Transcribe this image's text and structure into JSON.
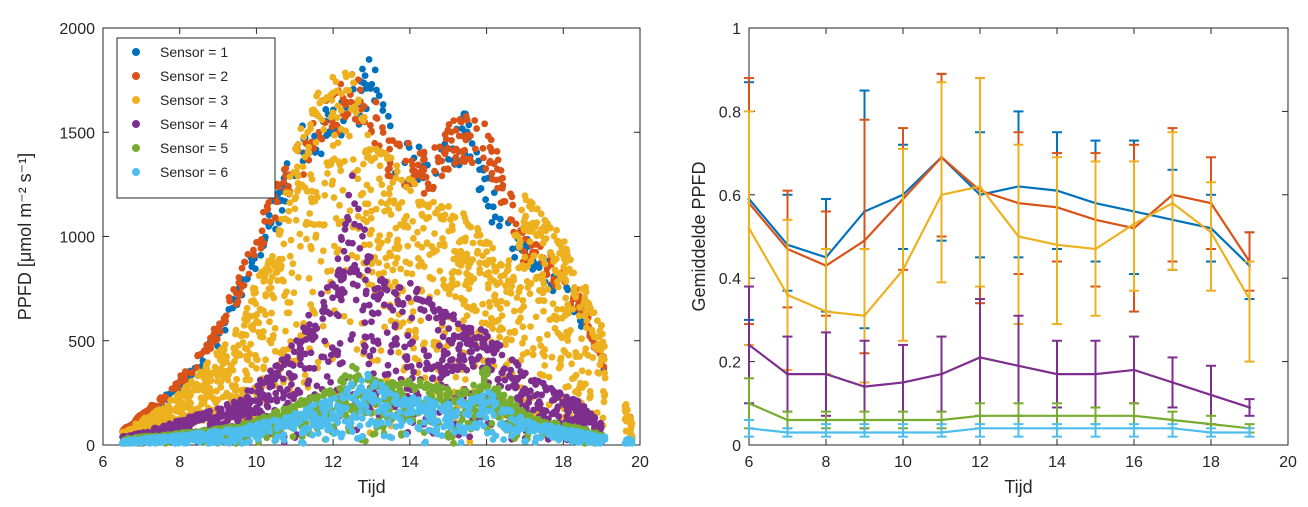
{
  "colors": {
    "s1": "#0072BD",
    "s2": "#D95319",
    "s3": "#EDB120",
    "s4": "#7E2F8E",
    "s5": "#77AC30",
    "s6": "#4DBEEE",
    "axis": "#262626"
  },
  "chart_data": [
    {
      "type": "scatter",
      "xlabel": "Tijd",
      "ylabel": "PPFD [μmol m⁻² s⁻¹]",
      "xlim": [
        6,
        20
      ],
      "ylim": [
        0,
        2000
      ],
      "xticks": [
        6,
        8,
        10,
        12,
        14,
        16,
        18,
        20
      ],
      "yticks": [
        0,
        500,
        1000,
        1500,
        2000
      ],
      "xtick_labels": [
        "6",
        "8",
        "10",
        "12",
        "14",
        "16",
        "18",
        "20"
      ],
      "ytick_labels": [
        "0",
        "500",
        "1000",
        "1500",
        "2000"
      ],
      "legend_position": "top-left",
      "legend": [
        "Sensor = 1",
        "Sensor = 2",
        "Sensor = 3",
        "Sensor = 4",
        "Sensor = 5",
        "Sensor = 6"
      ],
      "series": [
        {
          "name": "Sensor = 1",
          "color": "#0072BD",
          "x": [
            6.5,
            7,
            7.5,
            8,
            8.5,
            9,
            9.5,
            10,
            10.5,
            11,
            11.5,
            12,
            12.5,
            13,
            13.5,
            14,
            14.5,
            15,
            15.5,
            16,
            16.5,
            17,
            17.5,
            18,
            18.5,
            19,
            19.8
          ],
          "y": [
            70,
            140,
            220,
            300,
            420,
            560,
            760,
            1000,
            1200,
            1500,
            1600,
            1640,
            1750,
            1890,
            1550,
            1450,
            1420,
            1450,
            1640,
            1300,
            1100,
            1000,
            900,
            800,
            650,
            420,
            120
          ]
        },
        {
          "name": "Sensor = 2",
          "color": "#D95319",
          "x": [
            6.5,
            7,
            7.5,
            8,
            8.5,
            9,
            9.5,
            10,
            10.5,
            11,
            11.5,
            12,
            12.5,
            13,
            13.5,
            14,
            14.5,
            15,
            15.5,
            16,
            16.5,
            17,
            17.5,
            18,
            18.5,
            19,
            19.8
          ],
          "y": [
            75,
            150,
            230,
            330,
            450,
            600,
            800,
            1050,
            1250,
            1450,
            1600,
            1700,
            1850,
            1700,
            1480,
            1450,
            1400,
            1550,
            1600,
            1550,
            1300,
            1000,
            950,
            850,
            700,
            450,
            110
          ]
        },
        {
          "name": "Sensor = 3",
          "color": "#EDB120",
          "x": [
            6.5,
            7,
            7.5,
            8,
            8.5,
            9,
            9.5,
            10,
            10.5,
            11,
            11.5,
            12,
            12.5,
            13,
            13.5,
            14,
            14.5,
            15,
            15.5,
            16,
            16.5,
            17,
            17.5,
            18,
            18.5,
            19,
            19.8
          ],
          "y": [
            60,
            120,
            180,
            250,
            350,
            450,
            560,
            800,
            950,
            1450,
            1700,
            1790,
            1820,
            1450,
            1380,
            1300,
            1200,
            1150,
            1100,
            1000,
            850,
            1200,
            1100,
            1000,
            800,
            600,
            100
          ]
        },
        {
          "name": "Sensor = 4",
          "color": "#7E2F8E",
          "x": [
            6.5,
            7,
            7.5,
            8,
            8.5,
            9,
            9.5,
            10,
            10.5,
            11,
            11.5,
            12,
            12.5,
            13,
            13.5,
            14,
            14.5,
            15,
            15.5,
            16,
            16.5,
            17,
            17.5,
            18,
            18.5,
            19
          ],
          "y": [
            40,
            60,
            90,
            120,
            150,
            180,
            220,
            300,
            380,
            500,
            700,
            800,
            1300,
            900,
            750,
            800,
            700,
            650,
            600,
            550,
            450,
            350,
            300,
            250,
            200,
            100
          ]
        },
        {
          "name": "Sensor = 5",
          "color": "#77AC30",
          "x": [
            6.5,
            7,
            7.5,
            8,
            8.5,
            9,
            9.5,
            10,
            10.5,
            11,
            11.5,
            12,
            12.5,
            13,
            13.5,
            14,
            14.5,
            15,
            15.5,
            16,
            16.5,
            17,
            17.5,
            18,
            18.5,
            19
          ],
          "y": [
            30,
            40,
            50,
            60,
            70,
            80,
            100,
            130,
            160,
            200,
            250,
            280,
            380,
            330,
            300,
            320,
            300,
            280,
            260,
            380,
            250,
            150,
            120,
            100,
            80,
            50
          ]
        },
        {
          "name": "Sensor = 6",
          "color": "#4DBEEE",
          "x": [
            6.5,
            7,
            7.5,
            8,
            8.5,
            9,
            9.5,
            10,
            10.5,
            11,
            11.5,
            12,
            12.5,
            13,
            13.5,
            14,
            14.5,
            15,
            15.5,
            16,
            16.5,
            17,
            17.5,
            18,
            18.5,
            19,
            19.8
          ],
          "y": [
            20,
            30,
            40,
            50,
            60,
            70,
            80,
            100,
            130,
            160,
            200,
            220,
            300,
            350,
            250,
            230,
            220,
            200,
            220,
            260,
            200,
            120,
            100,
            80,
            60,
            40,
            30
          ]
        }
      ]
    },
    {
      "type": "line",
      "xlabel": "Tijd",
      "ylabel": "Gemiddelde PPFD",
      "xlim": [
        6,
        20
      ],
      "ylim": [
        0,
        1
      ],
      "xticks": [
        6,
        8,
        10,
        12,
        14,
        16,
        18,
        20
      ],
      "yticks": [
        0,
        0.2,
        0.4,
        0.6,
        0.8,
        1
      ],
      "xtick_labels": [
        "6",
        "8",
        "10",
        "12",
        "14",
        "16",
        "18",
        "20"
      ],
      "ytick_labels": [
        "0",
        "0.2",
        "0.4",
        "0.6",
        "0.8",
        "1"
      ],
      "x": [
        6,
        7,
        8,
        9,
        10,
        11,
        12,
        13,
        14,
        15,
        16,
        17,
        18,
        19
      ],
      "series": [
        {
          "color": "#0072BD",
          "values": [
            0.59,
            0.48,
            0.45,
            0.56,
            0.6,
            0.69,
            0.6,
            0.62,
            0.61,
            0.58,
            0.56,
            0.54,
            0.52,
            0.43
          ],
          "upper": [
            0.87,
            0.6,
            0.59,
            0.85,
            0.72,
            0.89,
            0.75,
            0.8,
            0.75,
            0.73,
            0.73,
            0.66,
            0.6,
            0.51
          ],
          "lower": [
            0.3,
            0.37,
            0.32,
            0.28,
            0.47,
            0.49,
            0.45,
            0.45,
            0.47,
            0.44,
            0.41,
            0.42,
            0.44,
            0.35
          ]
        },
        {
          "color": "#D95319",
          "values": [
            0.58,
            0.47,
            0.43,
            0.49,
            0.59,
            0.69,
            0.61,
            0.58,
            0.57,
            0.54,
            0.52,
            0.6,
            0.58,
            0.44
          ],
          "upper": [
            0.88,
            0.61,
            0.56,
            0.78,
            0.76,
            0.89,
            0.88,
            0.75,
            0.7,
            0.7,
            0.72,
            0.76,
            0.69,
            0.51
          ],
          "lower": [
            0.29,
            0.33,
            0.31,
            0.22,
            0.42,
            0.5,
            0.34,
            0.41,
            0.44,
            0.38,
            0.32,
            0.44,
            0.47,
            0.37
          ]
        },
        {
          "color": "#EDB120",
          "values": [
            0.52,
            0.36,
            0.32,
            0.31,
            0.42,
            0.6,
            0.62,
            0.5,
            0.48,
            0.47,
            0.53,
            0.58,
            0.51,
            0.35
          ],
          "upper": [
            0.8,
            0.54,
            0.47,
            0.47,
            0.71,
            0.87,
            0.88,
            0.72,
            0.69,
            0.68,
            0.68,
            0.75,
            0.63,
            0.44
          ],
          "lower": [
            0.24,
            0.18,
            0.17,
            0.15,
            0.25,
            0.39,
            0.38,
            0.29,
            0.29,
            0.31,
            0.37,
            0.42,
            0.37,
            0.2
          ]
        },
        {
          "color": "#7E2F8E",
          "values": [
            0.24,
            0.17,
            0.17,
            0.14,
            0.15,
            0.17,
            0.21,
            0.19,
            0.17,
            0.17,
            0.18,
            0.15,
            0.12,
            0.09
          ],
          "upper": [
            0.38,
            0.26,
            0.27,
            0.25,
            0.24,
            0.26,
            0.35,
            0.31,
            0.25,
            0.25,
            0.26,
            0.21,
            0.19,
            0.11
          ],
          "lower": [
            0.1,
            0.08,
            0.07,
            0.04,
            0.06,
            0.08,
            0.07,
            0.07,
            0.09,
            0.09,
            0.1,
            0.09,
            0.05,
            0.07
          ]
        },
        {
          "color": "#77AC30",
          "values": [
            0.1,
            0.06,
            0.06,
            0.06,
            0.06,
            0.06,
            0.07,
            0.07,
            0.07,
            0.07,
            0.07,
            0.06,
            0.05,
            0.04
          ],
          "upper": [
            0.16,
            0.08,
            0.08,
            0.08,
            0.08,
            0.08,
            0.1,
            0.1,
            0.1,
            0.09,
            0.1,
            0.08,
            0.07,
            0.05
          ],
          "lower": [
            0.04,
            0.04,
            0.04,
            0.04,
            0.04,
            0.04,
            0.04,
            0.04,
            0.04,
            0.05,
            0.04,
            0.04,
            0.03,
            0.03
          ]
        },
        {
          "color": "#4DBEEE",
          "values": [
            0.04,
            0.03,
            0.03,
            0.03,
            0.03,
            0.03,
            0.04,
            0.04,
            0.04,
            0.04,
            0.04,
            0.04,
            0.03,
            0.03
          ],
          "upper": [
            0.06,
            0.04,
            0.05,
            0.05,
            0.05,
            0.05,
            0.05,
            0.05,
            0.05,
            0.05,
            0.05,
            0.05,
            0.04,
            0.04
          ],
          "lower": [
            0.02,
            0.02,
            0.02,
            0.02,
            0.02,
            0.02,
            0.02,
            0.02,
            0.02,
            0.02,
            0.02,
            0.02,
            0.02,
            0.02
          ]
        }
      ]
    }
  ]
}
